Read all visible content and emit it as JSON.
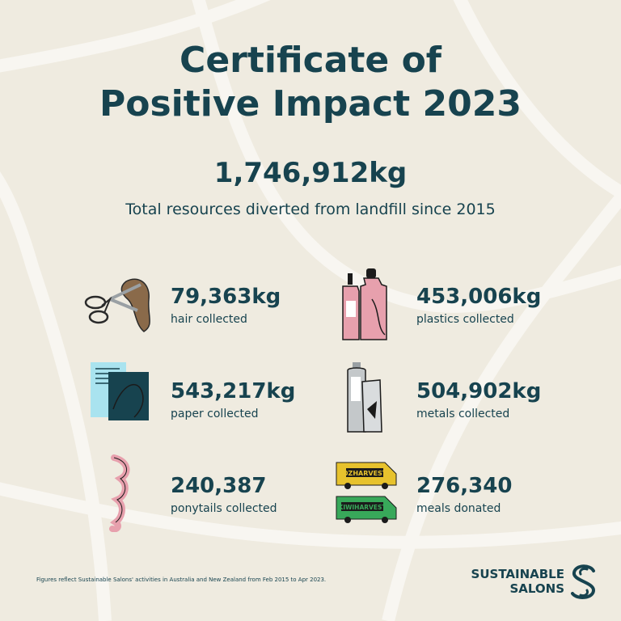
{
  "title_line1": "Certificate of",
  "title_line2": "Positive Impact 2023",
  "total_value": "1,746,912kg",
  "total_label": "Total resources diverted from landfill since 2015",
  "stats": [
    {
      "value": "79,363kg",
      "label": "hair collected",
      "icon": "scissors-hair-icon"
    },
    {
      "value": "453,006kg",
      "label": "plastics collected",
      "icon": "bottles-icon"
    },
    {
      "value": "543,217kg",
      "label": "paper collected",
      "icon": "paper-icon"
    },
    {
      "value": "504,902kg",
      "label": "metals collected",
      "icon": "spray-can-icon"
    },
    {
      "value": "240,387",
      "label": "ponytails collected",
      "icon": "ponytail-icon"
    },
    {
      "value": "276,340",
      "label": "meals donated",
      "icon": "vans-icon"
    }
  ],
  "van_labels": [
    "OZHARVEST",
    "KIWIHARVEST"
  ],
  "footnote": "Figures reflect Sustainable Salons' activities in Australia and New Zealand from Feb 2015 to Apr 2023.",
  "brand_line1": "SUSTAINABLE",
  "brand_line2": "SALONS",
  "colors": {
    "text": "#17434f",
    "background": "#efebe0",
    "pink": "#e7a0ad",
    "teal": "#17434f",
    "yellow": "#e7c22d",
    "green": "#38a85a",
    "light_blue": "#a9e3ef"
  }
}
